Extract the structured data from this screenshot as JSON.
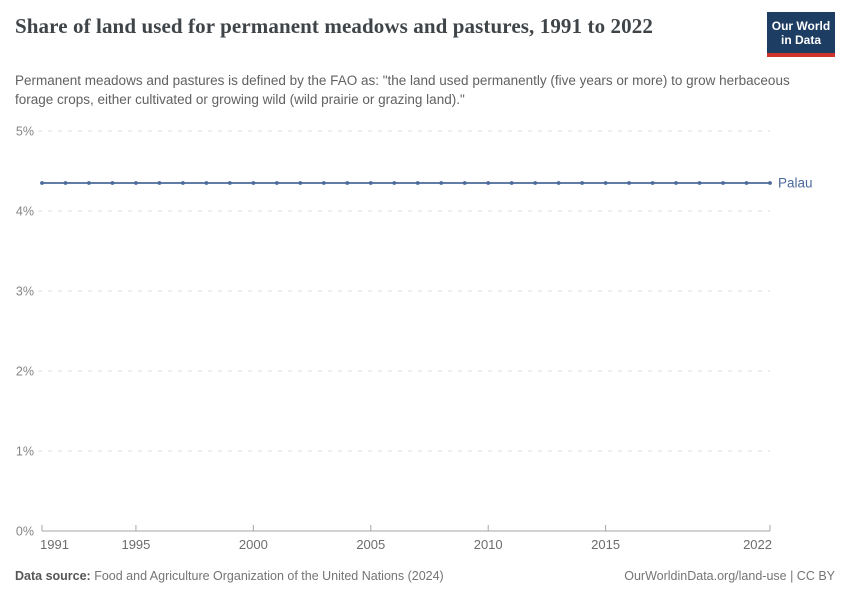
{
  "header": {
    "logo": {
      "line1": "Our World",
      "line2": "in Data",
      "bg_color": "#1d3d63",
      "bar_color": "#cf342c"
    }
  },
  "chart_data": {
    "type": "line",
    "title": "Share of land used for permanent meadows and pastures, 1991 to 2022",
    "subtitle": "Permanent meadows and pastures is defined by the FAO as: \"the land used permanently (five years or more) to grow herbaceous forage crops, either cultivated or growing wild (wild prairie or grazing land).\"",
    "x": [
      1991,
      1992,
      1993,
      1994,
      1995,
      1996,
      1997,
      1998,
      1999,
      2000,
      2001,
      2002,
      2003,
      2004,
      2005,
      2006,
      2007,
      2008,
      2009,
      2010,
      2011,
      2012,
      2013,
      2014,
      2015,
      2016,
      2017,
      2018,
      2019,
      2020,
      2021,
      2022
    ],
    "series": [
      {
        "name": "Palau",
        "color": "#4C6A9C",
        "values": [
          4.35,
          4.35,
          4.35,
          4.35,
          4.35,
          4.35,
          4.35,
          4.35,
          4.35,
          4.35,
          4.35,
          4.35,
          4.35,
          4.35,
          4.35,
          4.35,
          4.35,
          4.35,
          4.35,
          4.35,
          4.35,
          4.35,
          4.35,
          4.35,
          4.35,
          4.35,
          4.35,
          4.35,
          4.35,
          4.35,
          4.35,
          4.35
        ]
      }
    ],
    "xlim": [
      1991,
      2022
    ],
    "ylim": [
      0,
      5
    ],
    "x_ticks": [
      1991,
      1995,
      2000,
      2005,
      2010,
      2015,
      2022
    ],
    "y_ticks": [
      0,
      1,
      2,
      3,
      4,
      5
    ],
    "y_suffix": "%",
    "grid": "horizontal-dashed",
    "legend": "end-of-line-label"
  },
  "footer": {
    "source_label": "Data source:",
    "source_text": " Food and Agriculture Organization of the United Nations (2024)",
    "credit": "OurWorldinData.org/land-use | CC BY"
  }
}
